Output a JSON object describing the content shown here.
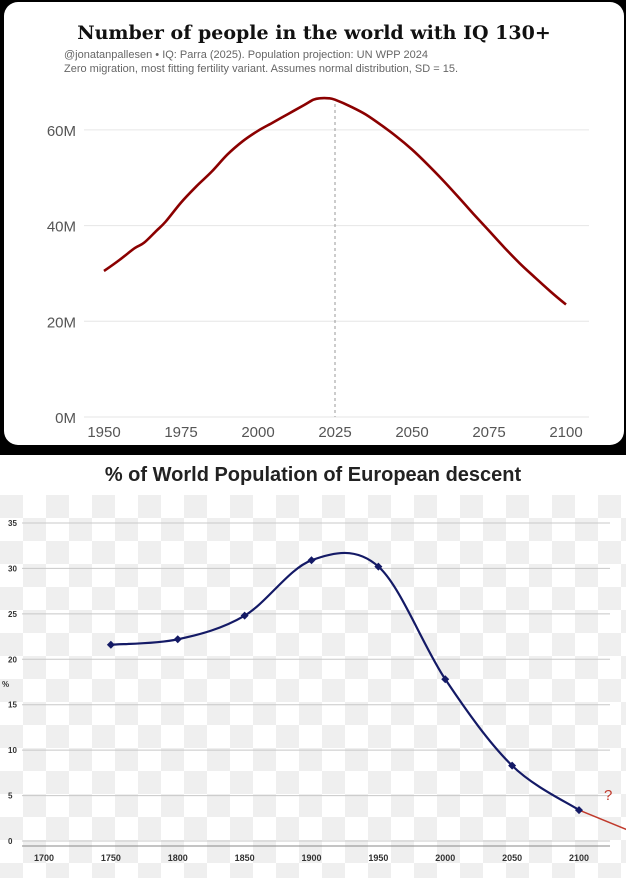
{
  "chart_data": [
    {
      "type": "line",
      "title": "Number of people in the world with IQ 130+",
      "subtitle_lines": [
        "@jonatanpallesen • IQ: Parra (2025). Population projection: UN WPP 2024",
        "Zero migration, most fitting fertility variant. Assumes normal distribution, SD = 15."
      ],
      "x_ticks": [
        "1950",
        "1975",
        "2000",
        "2025",
        "2050",
        "2075",
        "2100"
      ],
      "y_ticks": [
        "0M",
        "20M",
        "40M",
        "60M"
      ],
      "xlim": [
        1950,
        2100
      ],
      "ylim": [
        0,
        70
      ],
      "grid": true,
      "reference_line_x": 2025,
      "series_color": "#8b0000",
      "series": [
        {
          "x": [
            1950,
            1955,
            1960,
            1963,
            1967,
            1970,
            1975,
            1980,
            1985,
            1990,
            1995,
            2000,
            2005,
            2010,
            2015,
            2018,
            2020,
            2023,
            2025,
            2030,
            2035,
            2040,
            2045,
            2050,
            2055,
            2060,
            2065,
            2070,
            2075,
            2080,
            2085,
            2090,
            2095,
            2100
          ],
          "y": [
            30.5,
            32.8,
            35.3,
            36.4,
            38.9,
            40.8,
            44.8,
            48.2,
            51.3,
            54.8,
            57.6,
            59.8,
            61.6,
            63.4,
            65.2,
            66.3,
            66.6,
            66.6,
            66.3,
            64.9,
            63.2,
            61.0,
            58.6,
            55.9,
            52.8,
            49.5,
            46.0,
            42.4,
            38.9,
            35.4,
            32.1,
            29.1,
            26.2,
            23.5
          ]
        }
      ]
    },
    {
      "type": "line",
      "title": "% of World Population of European descent",
      "ylabel": "%",
      "x_ticks": [
        "1700",
        "1750",
        "1800",
        "1850",
        "1900",
        "1950",
        "2000",
        "2050",
        "2100"
      ],
      "y_ticks": [
        "0",
        "5",
        "10",
        "15",
        "20",
        "25",
        "30",
        "35"
      ],
      "xlim": [
        1700,
        2110
      ],
      "ylim": [
        0,
        35
      ],
      "grid": true,
      "series_color": "#141a66",
      "series": [
        {
          "x": [
            1750,
            1800,
            1850,
            1900,
            1950,
            2000,
            2050,
            2100
          ],
          "y": [
            21.6,
            22.2,
            24.8,
            30.9,
            30.2,
            17.8,
            8.3,
            3.4
          ]
        }
      ],
      "extrapolation": {
        "x": [
          2100,
          2140
        ],
        "y": [
          3.4,
          1.0
        ],
        "color": "#c0392b",
        "label": "?"
      }
    }
  ]
}
